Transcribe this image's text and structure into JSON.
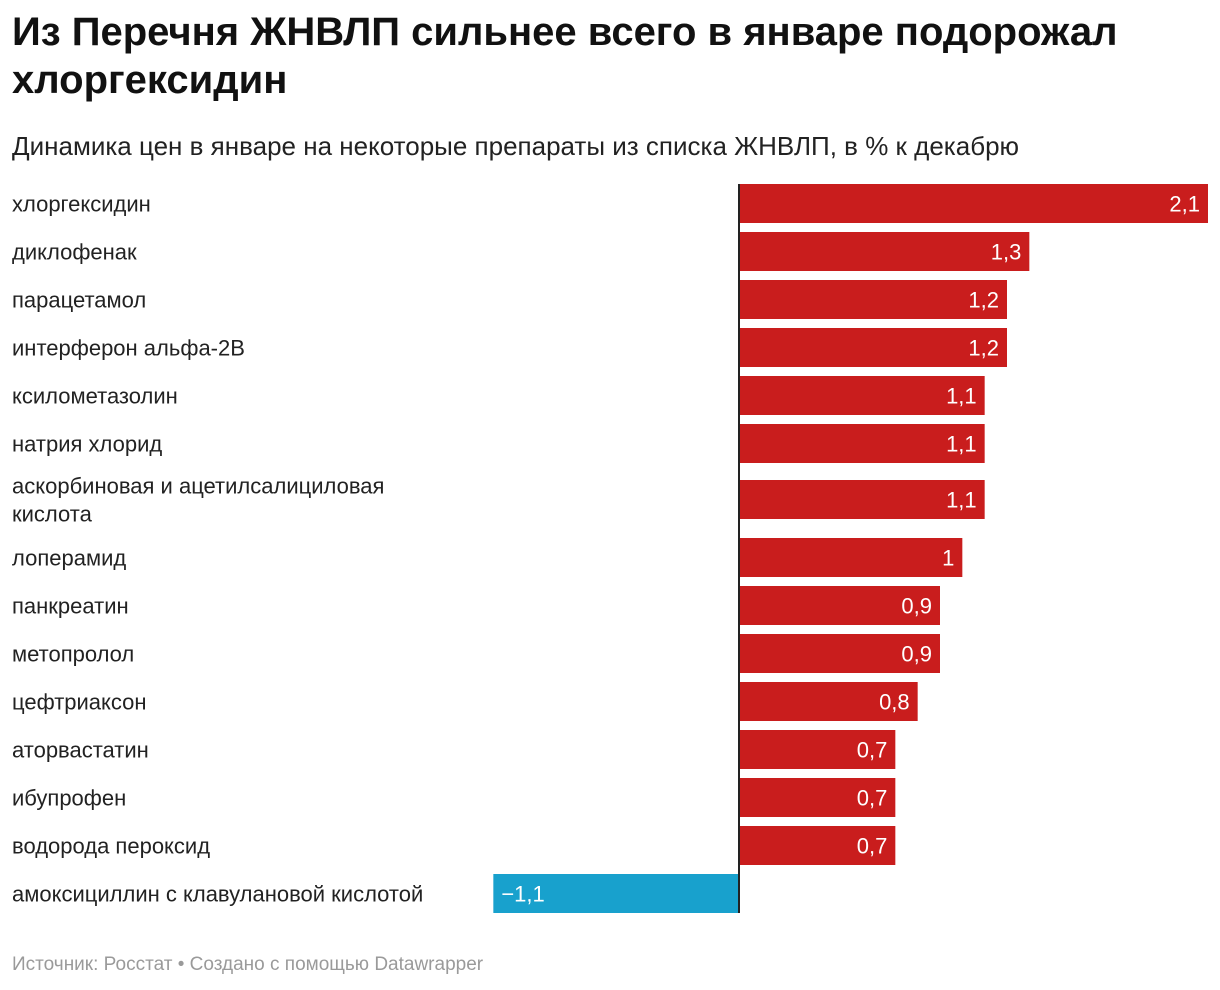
{
  "title": "Из Перечня ЖНВЛП сильнее всего в январе подорожал хлоргексидин",
  "subtitle": "Динамика цен в январе на некоторые препараты из списка ЖНВЛП, в % к декабрю",
  "footer": {
    "source": "Источник: Росстат",
    "separator": " • ",
    "credit": "Создано с помощью Datawrapper"
  },
  "colors": {
    "positive": "#c91d1d",
    "negative": "#18a1cd",
    "axis": "#222222",
    "label": "#222222",
    "value_text": "#ffffff"
  },
  "chart_data": {
    "type": "bar",
    "orientation": "horizontal",
    "title": "Из Перечня ЖНВЛП сильнее всего в январе подорожал хлоргексидин",
    "subtitle": "Динамика цен в январе на некоторые препараты из списка ЖНВЛП, в % к декабрю",
    "xlabel": "",
    "ylabel": "",
    "xlim": [
      -1.1,
      2.1
    ],
    "categories": [
      "хлоргексидин",
      "диклофенак",
      "парацетамол",
      "интерферон альфа-2В",
      "ксилометазолин",
      "натрия хлорид",
      "аскорбиновая и ацетилсалициловая кислота",
      "лоперамид",
      "панкреатин",
      "метопролол",
      "цефтриаксон",
      "аторвастатин",
      "ибупрофен",
      "водорода пероксид",
      "амоксициллин с клавулановой кислотой"
    ],
    "values": [
      2.1,
      1.3,
      1.2,
      1.2,
      1.1,
      1.1,
      1.1,
      1.0,
      0.9,
      0.9,
      0.8,
      0.7,
      0.7,
      0.7,
      -1.1
    ],
    "value_labels": [
      "2,1",
      "1,3",
      "1,2",
      "1,2",
      "1,1",
      "1,1",
      "1,1",
      "1",
      "0,9",
      "0,9",
      "0,8",
      "0,7",
      "0,7",
      "0,7",
      "−1,1"
    ],
    "grid": false,
    "legend": "none"
  }
}
